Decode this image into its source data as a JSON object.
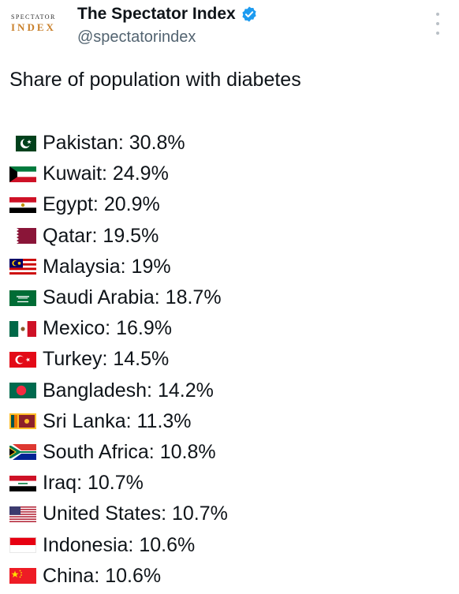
{
  "author": {
    "logo_text_top": "SPECTATOR",
    "logo_text_bottom": "INDEX",
    "display_name": "The Spectator Index",
    "handle": "@spectatorindex",
    "verified": true
  },
  "tweet": {
    "title": "Share of population with diabetes",
    "items": [
      {
        "label": "Pakistan: 30.8%",
        "flag": "pakistan-flag"
      },
      {
        "label": "Kuwait: 24.9%",
        "flag": "kuwait-flag"
      },
      {
        "label": "Egypt: 20.9%",
        "flag": "egypt-flag"
      },
      {
        "label": "Qatar: 19.5%",
        "flag": "qatar-flag"
      },
      {
        "label": "Malaysia: 19%",
        "flag": "malaysia-flag"
      },
      {
        "label": "Saudi Arabia: 18.7%",
        "flag": "saudi-arabia-flag"
      },
      {
        "label": "Mexico: 16.9%",
        "flag": "mexico-flag"
      },
      {
        "label": "Turkey: 14.5%",
        "flag": "turkey-flag"
      },
      {
        "label": "Bangladesh: 14.2%",
        "flag": "bangladesh-flag"
      },
      {
        "label": "Sri Lanka: 11.3%",
        "flag": "sri-lanka-flag"
      },
      {
        "label": "South Africa: 10.8%",
        "flag": "south-africa-flag"
      },
      {
        "label": "Iraq: 10.7%",
        "flag": "iraq-flag"
      },
      {
        "label": "United States: 10.7%",
        "flag": "united-states-flag"
      },
      {
        "label": "Indonesia: 10.6%",
        "flag": "indonesia-flag"
      },
      {
        "label": "China: 10.6%",
        "flag": "china-flag"
      }
    ]
  },
  "icons": {
    "more": "more-options-icon",
    "verified": "verified-badge-icon"
  },
  "colors": {
    "text": "#0f1419",
    "handle": "#536471",
    "verified": "#1d9bf0",
    "logo_accent": "#c9802b"
  }
}
